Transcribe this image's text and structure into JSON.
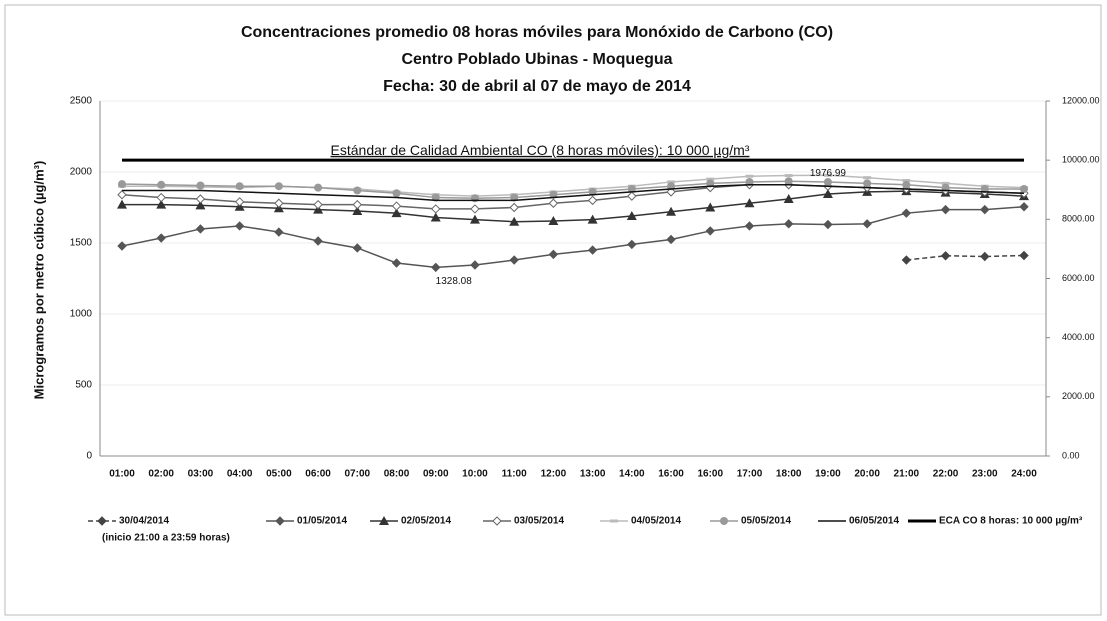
{
  "chart_data": {
    "type": "line",
    "title": "Concentraciones promedio 08 horas móviles para Monóxido de Carbono (CO)",
    "subtitle": "Centro  Poblado Ubinas - Moquegua",
    "date_line": "Fecha: 30 de abril al 07 de mayo de 2014",
    "ylabel": "Microgramos por metro cúbico (µg/m³)",
    "annotation": "Estándar de Calidad Ambiental CO (8 horas móviles): 10 000 µg/m³",
    "legend_note": "(inicio 21:00 a 23:59 horas)",
    "categories": [
      "01:00",
      "02:00",
      "03:00",
      "04:00",
      "05:00",
      "06:00",
      "07:00",
      "08:00",
      "09:00",
      "10:00",
      "11:00",
      "12:00",
      "13:00",
      "14:00",
      "16:00",
      "16:00",
      "17:00",
      "18:00",
      "19:00",
      "20:00",
      "21:00",
      "22:00",
      "23:00",
      "24:00"
    ],
    "ylim": [
      0,
      2500
    ],
    "yticks": [
      0,
      500,
      1000,
      1500,
      2000,
      2500
    ],
    "y2lim": [
      0,
      12000
    ],
    "y2ticks": [
      {
        "value": 0,
        "label": "0.00"
      },
      {
        "value": 2000,
        "label": "2000.00"
      },
      {
        "value": 4000,
        "label": "4000.00"
      },
      {
        "value": 6000,
        "label": "6000.00"
      },
      {
        "value": 8000,
        "label": "8000.00"
      },
      {
        "value": 10000,
        "label": "10000.00"
      },
      {
        "value": 12000,
        "label": "12000.00"
      }
    ],
    "grid": true,
    "legend": "bottom",
    "series": [
      {
        "name": "30/04/2014",
        "color": "#444444",
        "dash": true,
        "marker": "diamond",
        "values": [
          null,
          null,
          null,
          null,
          null,
          null,
          null,
          null,
          null,
          null,
          null,
          null,
          null,
          null,
          null,
          null,
          null,
          null,
          null,
          null,
          1380,
          1410,
          1405,
          1412
        ]
      },
      {
        "name": "01/05/2014",
        "color": "#555555",
        "marker": "diamond",
        "values": [
          1479,
          1535,
          1599,
          1620,
          1577,
          1514,
          1465,
          1359,
          1328.08,
          1345,
          1380,
          1420,
          1450,
          1490,
          1525,
          1585,
          1620,
          1635,
          1630,
          1635,
          1710,
          1735,
          1735,
          1755
        ]
      },
      {
        "name": "02/05/2014",
        "color": "#333333",
        "marker": "triangle",
        "values": [
          1770,
          1770,
          1765,
          1755,
          1745,
          1735,
          1725,
          1710,
          1680,
          1665,
          1650,
          1655,
          1665,
          1690,
          1720,
          1750,
          1780,
          1810,
          1845,
          1860,
          1865,
          1855,
          1845,
          1830
        ]
      },
      {
        "name": "03/05/2014",
        "color": "#666666",
        "marker": "open-diamond",
        "values": [
          1840,
          1820,
          1810,
          1790,
          1780,
          1770,
          1770,
          1760,
          1740,
          1740,
          1750,
          1780,
          1800,
          1830,
          1860,
          1890,
          1910,
          1910,
          1900,
          1890,
          1880,
          1870,
          1860,
          1850
        ]
      },
      {
        "name": "04/05/2014",
        "color": "#bbbbbb",
        "marker": "dash",
        "values": [
          1900,
          1900,
          1895,
          1890,
          1900,
          1890,
          1880,
          1860,
          1840,
          1830,
          1840,
          1860,
          1880,
          1900,
          1930,
          1950,
          1970,
          1975,
          1976.99,
          1960,
          1940,
          1920,
          1900,
          1890
        ]
      },
      {
        "name": "05/05/2014",
        "color": "#999999",
        "marker": "circle",
        "values": [
          1915,
          1910,
          1905,
          1900,
          1900,
          1890,
          1870,
          1850,
          1820,
          1815,
          1820,
          1840,
          1860,
          1880,
          1900,
          1920,
          1930,
          1935,
          1930,
          1920,
          1910,
          1890,
          1880,
          1880
        ]
      },
      {
        "name": "06/05/2014",
        "color": "#111111",
        "marker": "none",
        "values": [
          1870,
          1870,
          1870,
          1860,
          1850,
          1840,
          1830,
          1820,
          1800,
          1800,
          1800,
          1820,
          1840,
          1860,
          1880,
          1900,
          1910,
          1910,
          1900,
          1890,
          1880,
          1870,
          1860,
          1850
        ]
      },
      {
        "name": "ECA CO 8 horas: 10 000 µg/m³",
        "color": "#000000",
        "marker": "none",
        "width": 3,
        "axis": "y2",
        "values": [
          10000,
          10000,
          10000,
          10000,
          10000,
          10000,
          10000,
          10000,
          10000,
          10000,
          10000,
          10000,
          10000,
          10000,
          10000,
          10000,
          10000,
          10000,
          10000,
          10000,
          10000,
          10000,
          10000,
          10000
        ]
      }
    ]
  }
}
